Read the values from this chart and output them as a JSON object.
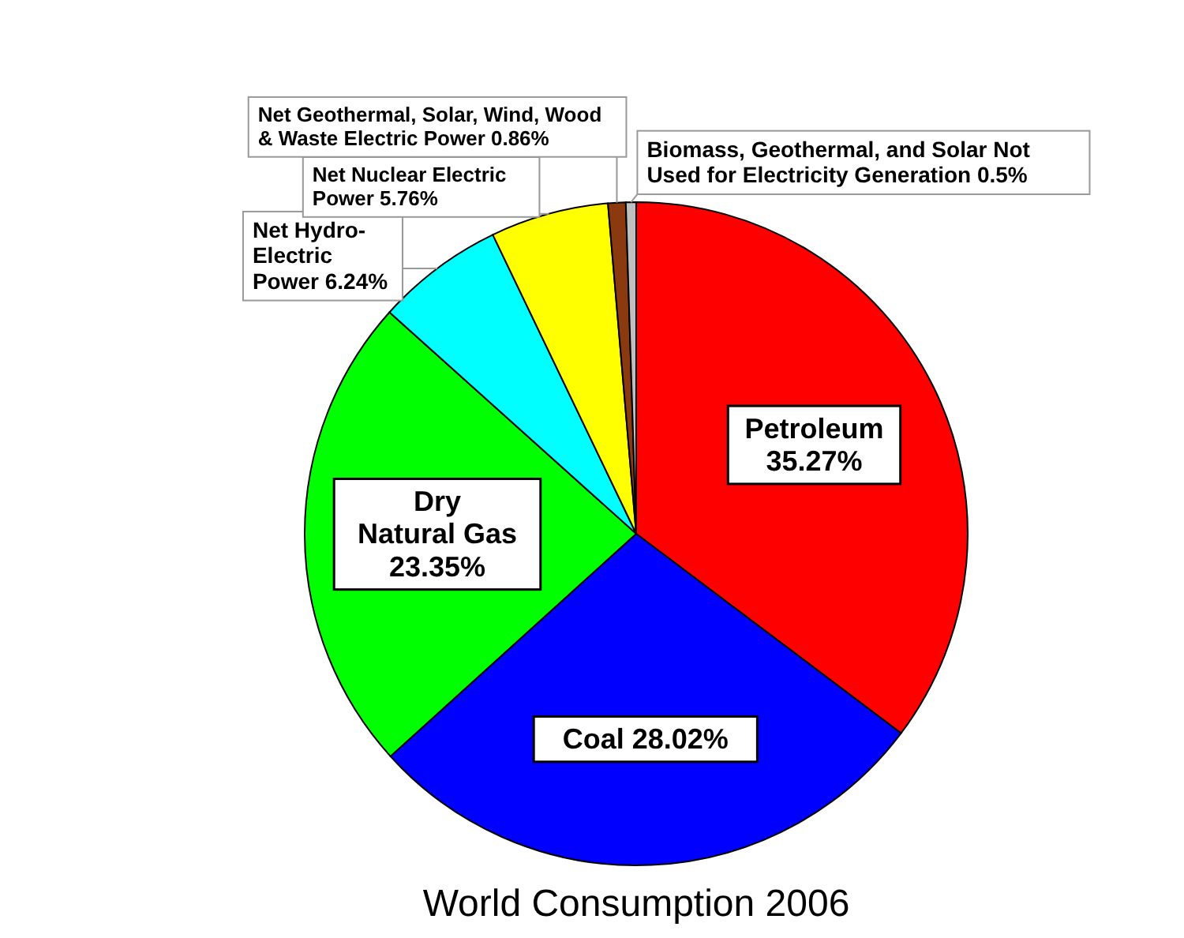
{
  "chart_data": {
    "type": "pie",
    "title": "World Consumption 2006",
    "categories": [
      "Petroleum",
      "Coal",
      "Dry\nNatural Gas",
      "Net Hydro-\nElectric\nPower",
      "Net Nuclear Electric\nPower",
      "Net Geothermal, Solar, Wind, Wood\n& Waste Electric Power",
      "Biomass, Geothermal, and Solar Not\nUsed for Electricity Generation"
    ],
    "values": [
      35.27,
      28.02,
      23.35,
      6.24,
      5.76,
      0.86,
      0.5
    ],
    "value_labels": [
      "35.27%",
      "28.02%",
      "23.35%",
      "6.24%",
      "5.76%",
      "0.86%",
      "0.5%"
    ],
    "colors": [
      "#ff0000",
      "#0000ff",
      "#00ff00",
      "#00ffff",
      "#ffff00",
      "#8b3a0f",
      "#c0c0c0"
    ],
    "legend": false
  }
}
